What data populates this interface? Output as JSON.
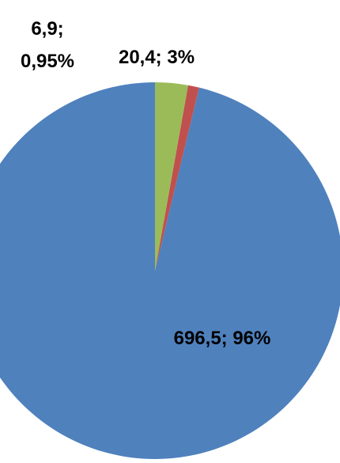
{
  "chart_data": {
    "type": "pie",
    "start_angle_deg": 0,
    "direction": "counterclockwise",
    "slices": [
      {
        "value": 696.5,
        "percent_label": "96%",
        "label": "696,5; 96%",
        "label_lines": [
          "696,5; 96%"
        ],
        "color": "#4F81BD"
      },
      {
        "value": 6.9,
        "percent_label": "0,95%",
        "label": "6,9; 0,95%",
        "label_lines": [
          "6,9;",
          "0,95%"
        ],
        "color": "#C0504D"
      },
      {
        "value": 20.4,
        "percent_label": "3%",
        "label": "20,4; 3%",
        "label_lines": [
          "20,4; 3%"
        ],
        "color": "#9BBB59"
      }
    ]
  }
}
